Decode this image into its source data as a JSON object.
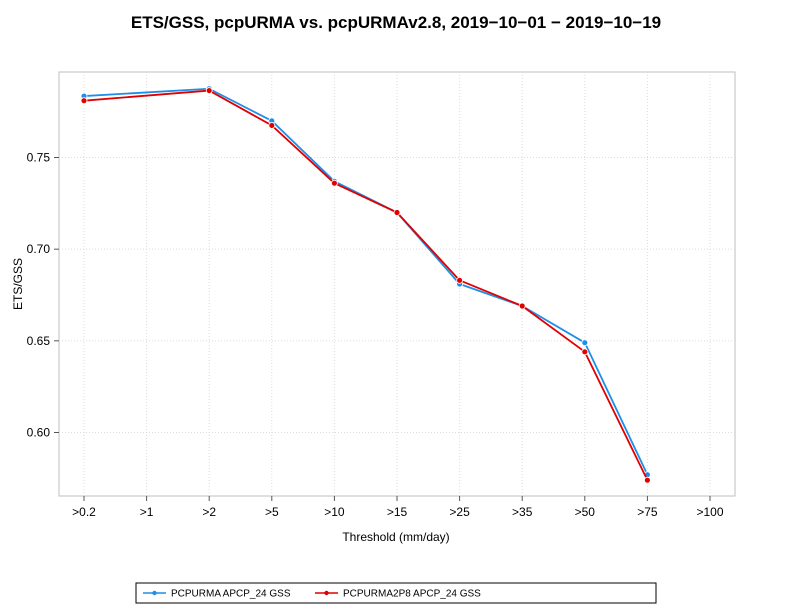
{
  "chart_data": {
    "type": "line",
    "title": "ETS/GSS, pcpURMA vs. pcpURMAv2.8, 2019−10−01 − 2019−10−19",
    "xlabel": "Threshold (mm/day)",
    "ylabel": "ETS/GSS",
    "categories": [
      ">0.2",
      ">1",
      ">2",
      ">5",
      ">10",
      ">15",
      ">25",
      ">35",
      ">50",
      ">75",
      ">100"
    ],
    "yticks": [
      "0.60",
      "0.65",
      "0.70",
      "0.75"
    ],
    "ylim": [
      0.565,
      0.8
    ],
    "grid": true,
    "legend_position": "bottom",
    "series": [
      {
        "name": "PCPURMA APCP_24 GSS",
        "color": "#1f8ee8",
        "values": [
          0.7835,
          null,
          0.7875,
          0.77,
          0.737,
          0.72,
          0.681,
          0.669,
          0.649,
          0.577,
          null
        ]
      },
      {
        "name": "PCPURMA2P8 APCP_24 GSS",
        "color": "#e00000",
        "values": [
          0.781,
          null,
          0.7865,
          0.7675,
          0.736,
          0.72,
          0.683,
          0.669,
          0.644,
          0.574,
          null
        ]
      }
    ]
  }
}
